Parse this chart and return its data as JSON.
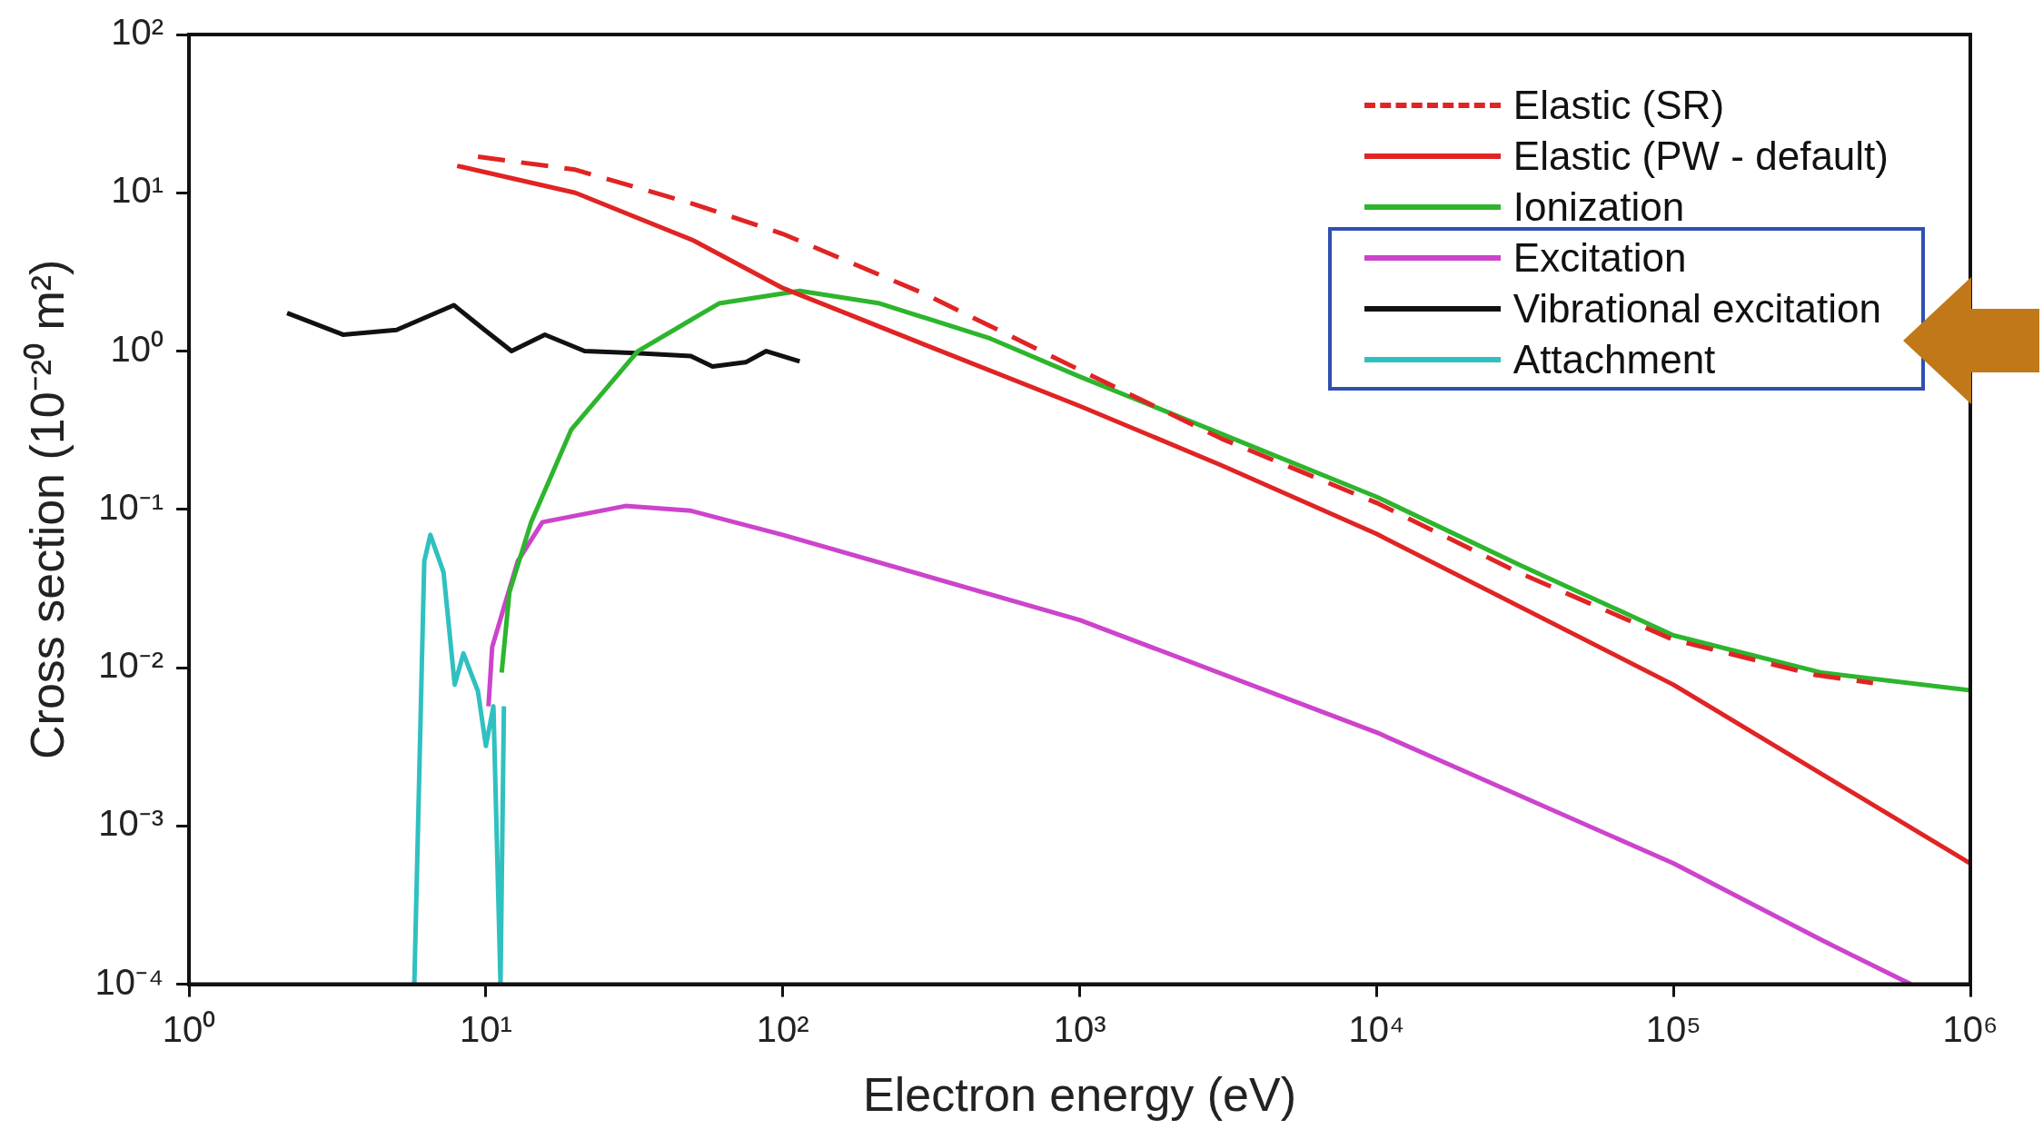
{
  "chart_data": {
    "type": "line",
    "xlabel": "Electron energy (eV)",
    "ylabel": "Cross section (10⁻²⁰ m²)",
    "log": "xy",
    "grid": false,
    "legend": "top right",
    "marker": "none",
    "xlim": [
      1,
      1000000
    ],
    "xticks": [
      {
        "value": 1,
        "label": "10⁰"
      },
      {
        "value": 10,
        "label": "10¹"
      },
      {
        "value": 100,
        "label": "10²"
      },
      {
        "value": 1000,
        "label": "10³"
      },
      {
        "value": 10000,
        "label": "10⁴"
      },
      {
        "value": 100000,
        "label": "10⁵"
      },
      {
        "value": 1000000,
        "label": "10⁶"
      }
    ],
    "ylim": [
      0.0001,
      100
    ],
    "yticks": [
      {
        "value": 0.0001,
        "label": "10⁻⁴"
      },
      {
        "value": 0.001,
        "label": "10⁻³"
      },
      {
        "value": 0.01,
        "label": "10⁻²"
      },
      {
        "value": 0.1,
        "label": "10⁻¹"
      },
      {
        "value": 1,
        "label": "10⁰"
      },
      {
        "value": 10,
        "label": "10¹"
      },
      {
        "value": 100,
        "label": "10²"
      }
    ],
    "series": [
      {
        "name": "Elastic (SR)",
        "color": "#e02424",
        "line_style": "dashed",
        "x": [
          9.4,
          20,
          50,
          100,
          300,
          1000,
          3000,
          10000,
          30000,
          100000,
          300000,
          470000
        ],
        "values": [
          16.9,
          14,
          8.5,
          5.5,
          2.3,
          0.76,
          0.28,
          0.11,
          0.04,
          0.015,
          0.009,
          0.008
        ]
      },
      {
        "name": "Elastic (PW - default)",
        "color": "#e02424",
        "line_style": "solid",
        "x": [
          8,
          20,
          50,
          100,
          300,
          1000,
          3000,
          10000,
          100000,
          1000000
        ],
        "values": [
          14.8,
          10,
          5,
          2.5,
          1.1,
          0.45,
          0.19,
          0.07,
          0.0078,
          0.00058
        ]
      },
      {
        "name": "Ionization",
        "color": "#2db52d",
        "line_style": "solid",
        "x": [
          11.3,
          12,
          14.2,
          19.4,
          32.5,
          61,
          114,
          212,
          500,
          1000,
          3000,
          10000,
          30000,
          100000,
          316000,
          1000000
        ],
        "values": [
          0.0093,
          0.03,
          0.083,
          0.32,
          1.0,
          2.0,
          2.4,
          2.0,
          1.2,
          0.69,
          0.3,
          0.12,
          0.045,
          0.016,
          0.0093,
          0.0072
        ]
      },
      {
        "name": "Excitation",
        "color": "#cc44cc",
        "line_style": "solid",
        "x": [
          10.2,
          10.5,
          11.5,
          12.8,
          15.5,
          29.5,
          49,
          100,
          1000,
          10000,
          100000,
          316000,
          630000
        ],
        "values": [
          0.0057,
          0.0135,
          0.024,
          0.047,
          0.083,
          0.105,
          0.098,
          0.069,
          0.02,
          0.0039,
          0.00058,
          0.00019,
          0.0001
        ]
      },
      {
        "name": "Vibrational excitation",
        "color": "#111111",
        "line_style": "solid",
        "x": [
          2.14,
          3.3,
          5,
          7.8,
          9.9,
          12.2,
          15.8,
          21.5,
          32,
          49,
          58,
          75,
          88,
          114
        ],
        "values": [
          1.74,
          1.27,
          1.36,
          1.95,
          1.36,
          1.0,
          1.27,
          1.0,
          0.97,
          0.93,
          0.8,
          0.85,
          1.0,
          0.86
        ]
      },
      {
        "name": "Attachment",
        "color": "#30c0c0",
        "line_style": "solid",
        "x": [
          5.74,
          6.2,
          6.5,
          7.2,
          7.85,
          8.4,
          9.4,
          10,
          10.6,
          11.2,
          11.5
        ],
        "values": [
          0.0001,
          0.047,
          0.069,
          0.04,
          0.0078,
          0.0123,
          0.0071,
          0.0032,
          0.0057,
          0.0001,
          0.0057
        ]
      }
    ]
  }
}
